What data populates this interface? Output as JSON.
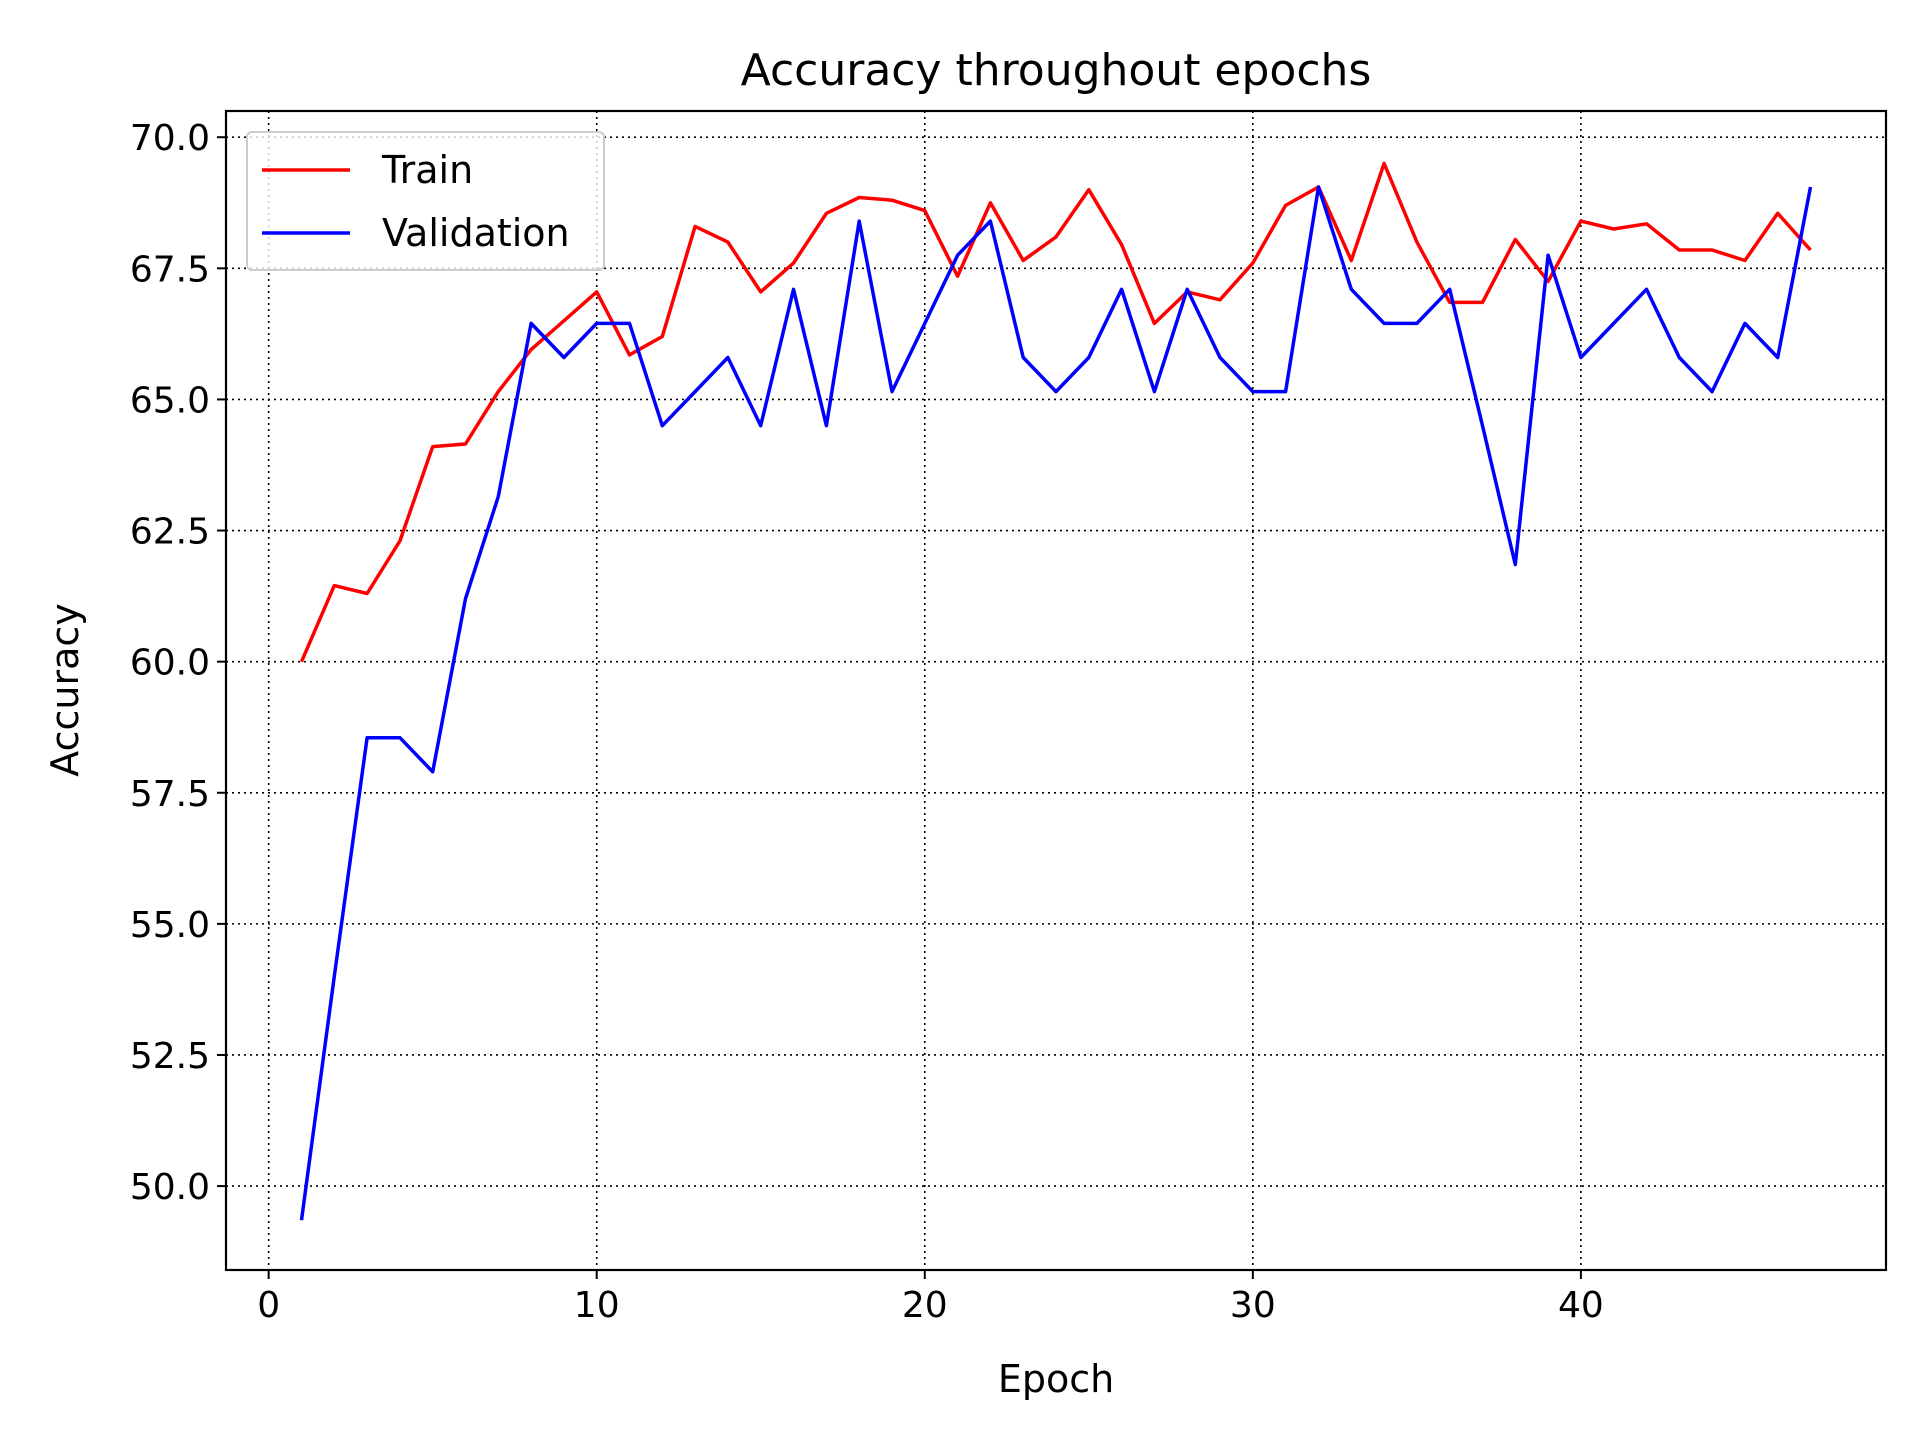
{
  "chart_data": {
    "type": "line",
    "title": "Accuracy throughout epochs",
    "xlabel": "Epoch",
    "ylabel": "Accuracy",
    "xlim": [
      -1.3,
      49.3
    ],
    "ylim": [
      48.4,
      70.5
    ],
    "xticks": [
      0,
      10,
      20,
      30,
      40
    ],
    "yticks": [
      50.0,
      52.5,
      55.0,
      57.5,
      60.0,
      62.5,
      65.0,
      67.5,
      70.0
    ],
    "xtick_labels": [
      "0",
      "10",
      "20",
      "30",
      "40"
    ],
    "ytick_labels": [
      "50.0",
      "52.5",
      "55.0",
      "57.5",
      "60.0",
      "62.5",
      "65.0",
      "67.5",
      "70.0"
    ],
    "grid": true,
    "legend_position": "top-left",
    "x": [
      1,
      2,
      3,
      4,
      5,
      6,
      7,
      8,
      9,
      10,
      11,
      12,
      13,
      14,
      15,
      16,
      17,
      18,
      19,
      20,
      21,
      22,
      23,
      24,
      25,
      26,
      27,
      28,
      29,
      30,
      31,
      32,
      33,
      34,
      35,
      36,
      37,
      38,
      39,
      40,
      41,
      42,
      43,
      44,
      45,
      46,
      47
    ],
    "series": [
      {
        "name": "Train",
        "color": "#ff0000",
        "values": [
          60.0,
          61.45,
          61.3,
          62.3,
          64.1,
          64.15,
          65.15,
          65.95,
          66.5,
          67.05,
          65.85,
          66.2,
          68.3,
          68.0,
          67.05,
          67.6,
          68.55,
          68.85,
          68.8,
          68.6,
          67.35,
          68.75,
          67.65,
          68.1,
          69.0,
          67.95,
          66.45,
          67.05,
          66.9,
          67.6,
          68.7,
          69.05,
          67.65,
          69.5,
          68.0,
          66.85,
          66.85,
          68.05,
          67.25,
          68.4,
          68.25,
          68.35,
          67.85,
          67.85,
          67.65,
          68.55,
          67.85
        ]
      },
      {
        "name": "Validation",
        "color": "#0000ff",
        "values": [
          49.35,
          54.0,
          58.55,
          58.55,
          57.9,
          61.2,
          63.15,
          66.45,
          65.8,
          66.45,
          66.45,
          64.5,
          65.15,
          65.8,
          64.5,
          67.1,
          64.5,
          68.4,
          65.15,
          66.45,
          67.75,
          68.4,
          65.8,
          65.15,
          65.8,
          67.1,
          65.15,
          67.1,
          65.8,
          65.15,
          65.15,
          69.05,
          67.1,
          66.45,
          66.45,
          67.1,
          64.5,
          61.85,
          67.75,
          65.8,
          66.45,
          67.1,
          65.8,
          65.15,
          66.45,
          65.8,
          69.05
        ]
      }
    ]
  }
}
